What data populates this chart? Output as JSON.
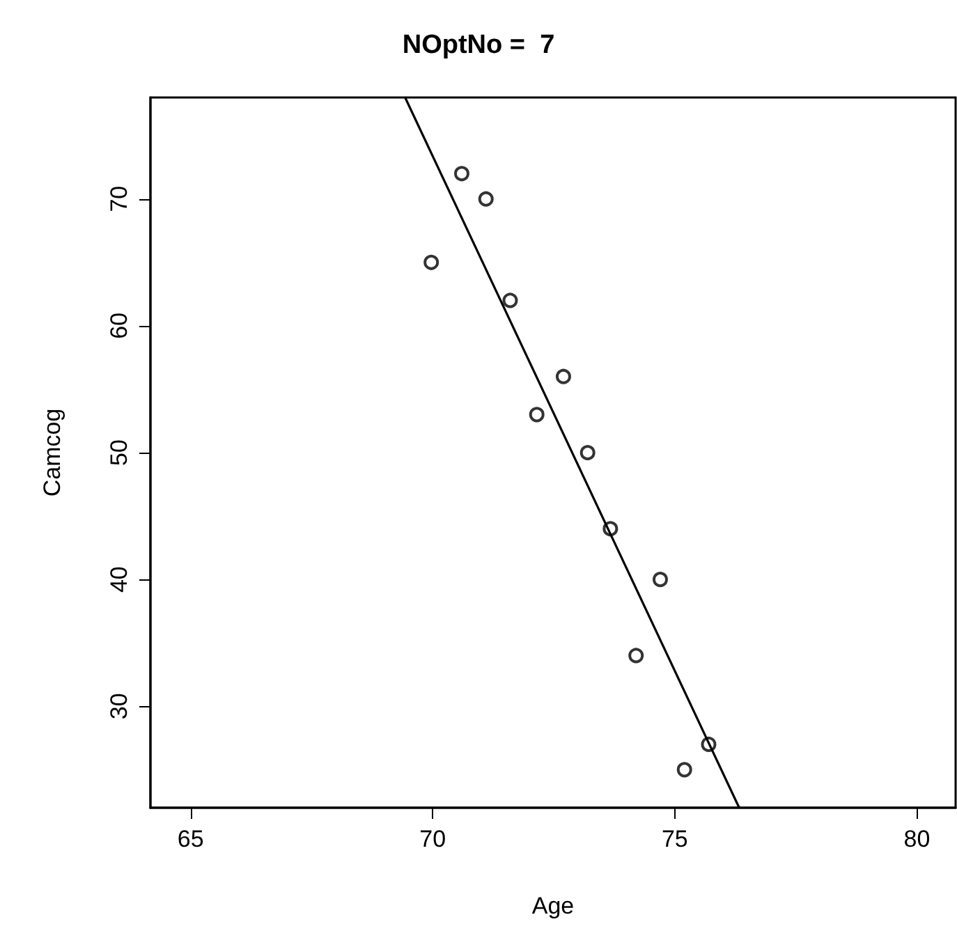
{
  "chart_data": {
    "type": "scatter",
    "title": "NOptNo =  7",
    "xlabel": "Age",
    "ylabel": "Camcog",
    "x": [
      69.97,
      70.6,
      71.1,
      71.6,
      72.15,
      72.7,
      73.2,
      73.67,
      74.2,
      74.7,
      75.2,
      75.7
    ],
    "series": [
      {
        "color": "#000000",
        "marker": "circle",
        "values": [
          65,
          72,
          70,
          62,
          53,
          56,
          50,
          44,
          34,
          40,
          25,
          27
        ]
      },
      {
        "type": "line",
        "color": "#000000",
        "marker": "none",
        "line_style": "solid",
        "x": [
          69.43,
          76.33
        ],
        "values": [
          78,
          22
        ]
      }
    ],
    "xlim": [
      64.17,
      80.8
    ],
    "ylim": [
      22,
      78
    ],
    "xticks": [
      65,
      70,
      75,
      80
    ],
    "yticks": [
      30,
      40,
      50,
      60,
      70
    ],
    "grid": false
  }
}
